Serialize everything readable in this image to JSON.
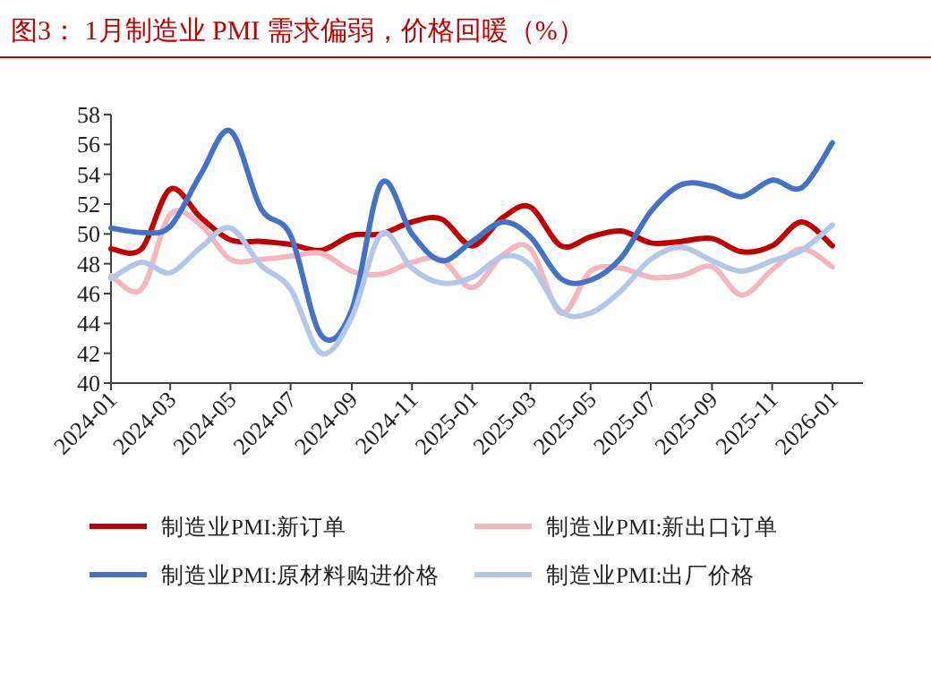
{
  "chart_data": {
    "type": "line",
    "title": "图3：  1月制造业 PMI 需求偏弱，价格回暖（%）",
    "x": [
      "2024-01",
      "2024-02",
      "2024-03",
      "2024-04",
      "2024-05",
      "2024-06",
      "2024-07",
      "2024-08",
      "2024-09",
      "2024-10",
      "2024-11",
      "2024-12",
      "2025-01",
      "2025-02",
      "2025-03",
      "2025-04",
      "2025-05",
      "2025-06",
      "2025-07",
      "2025-08",
      "2025-09",
      "2025-10",
      "2025-11",
      "2025-12",
      "2026-01"
    ],
    "xlim": [
      "2024-01",
      "2026-02"
    ],
    "xticks": [
      "2024-01",
      "2024-03",
      "2024-05",
      "2024-07",
      "2024-09",
      "2024-11",
      "2025-01",
      "2025-03",
      "2025-05",
      "2025-07",
      "2025-09",
      "2025-11",
      "2026-01"
    ],
    "ylim": [
      40,
      58
    ],
    "yticks": [
      40,
      42,
      44,
      46,
      48,
      50,
      52,
      54,
      56,
      58
    ],
    "legend": "bottom",
    "grid": false,
    "marker": "none",
    "line_style": "solid",
    "series": [
      {
        "name": "制造业PMI:新订单",
        "color": "#c00000",
        "values": [
          49.0,
          49.0,
          53.0,
          51.1,
          49.6,
          49.5,
          49.3,
          48.9,
          49.9,
          50.0,
          50.8,
          51.0,
          49.2,
          51.1,
          51.8,
          49.2,
          49.8,
          50.2,
          49.4,
          49.5,
          49.7,
          48.8,
          49.2,
          50.8,
          49.2
        ]
      },
      {
        "name": "制造业PMI:新出口订单",
        "color": "#f4b6bf",
        "values": [
          47.2,
          46.3,
          51.3,
          50.6,
          48.3,
          48.3,
          48.5,
          48.7,
          47.5,
          47.3,
          48.1,
          48.3,
          46.4,
          48.6,
          49.0,
          44.7,
          47.5,
          47.7,
          47.1,
          47.2,
          47.8,
          45.9,
          47.6,
          49.0,
          47.8
        ]
      },
      {
        "name": "制造业PMI:原材料购进价格",
        "color": "#4472c4",
        "values": [
          50.4,
          50.1,
          50.5,
          54.0,
          56.9,
          51.7,
          49.9,
          43.2,
          44.9,
          53.4,
          50.0,
          48.2,
          49.5,
          50.8,
          49.8,
          47.0,
          46.9,
          48.4,
          51.5,
          53.3,
          53.2,
          52.5,
          53.6,
          53.1,
          56.1
        ]
      },
      {
        "name": "制造业PMI:出厂价格",
        "color": "#b4c7e7",
        "values": [
          47.0,
          48.1,
          47.4,
          49.1,
          50.4,
          47.9,
          46.3,
          42.0,
          44.4,
          50.0,
          47.7,
          46.7,
          47.1,
          48.5,
          47.9,
          44.8,
          44.7,
          46.2,
          48.3,
          49.1,
          48.2,
          47.5,
          48.2,
          48.9,
          50.6
        ]
      }
    ]
  }
}
